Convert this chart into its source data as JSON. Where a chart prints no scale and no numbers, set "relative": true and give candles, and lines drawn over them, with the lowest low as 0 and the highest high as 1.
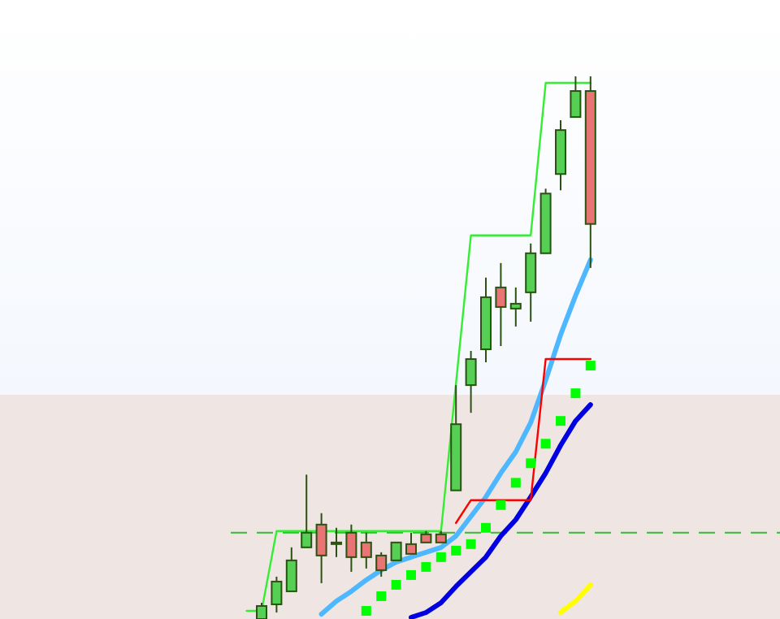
{
  "chart_data": {
    "type": "candlestick",
    "relative": true,
    "categories": [
      null,
      null,
      null,
      null,
      null,
      null,
      null,
      null,
      null,
      null,
      null,
      null,
      null,
      null,
      null,
      null,
      null,
      null,
      null,
      null,
      null,
      null,
      null,
      null
    ],
    "ohlc": [
      null,
      [
        0,
        0.03,
        0,
        0.024
      ],
      [
        0.027,
        0.078,
        0.012,
        0.069
      ],
      [
        0.051,
        0.132,
        0.051,
        0.108
      ],
      [
        0.132,
        0.266,
        0.132,
        0.159
      ],
      [
        0.174,
        0.195,
        0.066,
        0.117
      ],
      [
        0.141,
        0.168,
        0.114,
        0.141
      ],
      [
        0.159,
        0.174,
        0.087,
        0.114
      ],
      [
        0.141,
        0.159,
        0.093,
        0.114
      ],
      [
        0.117,
        0.123,
        0.078,
        0.09
      ],
      [
        0.108,
        0.141,
        0.108,
        0.141
      ],
      [
        0.138,
        0.159,
        0.12,
        0.12
      ],
      [
        0.156,
        0.162,
        0.141,
        0.141
      ],
      [
        0.156,
        0.162,
        0.141,
        0.141
      ],
      [
        0.237,
        0.431,
        0.237,
        0.359
      ],
      [
        0.431,
        0.494,
        0.38,
        0.479
      ],
      [
        0.497,
        0.629,
        0.473,
        0.593
      ],
      [
        0.611,
        0.656,
        0.503,
        0.575
      ],
      [
        0.572,
        0.611,
        0.539,
        0.581
      ],
      [
        0.602,
        0.692,
        0.548,
        0.674
      ],
      [
        0.674,
        0.793,
        0.674,
        0.784
      ],
      [
        0.82,
        0.919,
        0.79,
        0.901
      ],
      [
        0.925,
        1,
        0.925,
        0.973
      ],
      [
        0.973,
        1,
        0.647,
        0.728
      ]
    ],
    "colors": [
      null,
      "#55d055",
      "#55d055",
      "#55d055",
      "#55d055",
      "#e87474",
      "#55d055",
      "#e87474",
      "#e87474",
      "#e87474",
      "#55d055",
      "#e87474",
      "#e87474",
      "#e87474",
      "#55d055",
      "#55d055",
      "#55d055",
      "#e87474",
      "#55d055",
      "#55d055",
      "#55d055",
      "#55d055",
      "#55d055",
      "#e87474"
    ],
    "series": [
      {
        "type": "line",
        "marker": "none",
        "color": "#4db8ff",
        "values": [
          null,
          null,
          null,
          null,
          null,
          0.009,
          0.033,
          0.051,
          0.072,
          0.09,
          0.105,
          0.114,
          0.123,
          0.132,
          0.153,
          0.189,
          0.225,
          0.269,
          0.308,
          0.362,
          0.44,
          0.524,
          0.596,
          0.662
        ]
      },
      {
        "type": "line",
        "marker": "none",
        "color": "#0000e0",
        "values": [
          null,
          null,
          null,
          null,
          null,
          null,
          null,
          null,
          null,
          null,
          null,
          0.003,
          0.012,
          0.03,
          0.06,
          0.087,
          0.114,
          0.153,
          0.183,
          0.225,
          0.269,
          0.32,
          0.365,
          0.395
        ]
      },
      {
        "type": "line",
        "marker": "none",
        "color": "#ffff00",
        "values": [
          null,
          null,
          null,
          null,
          null,
          null,
          null,
          null,
          null,
          null,
          null,
          null,
          null,
          null,
          null,
          null,
          null,
          null,
          null,
          null,
          null,
          0.012,
          0.033,
          0.063
        ]
      },
      {
        "type": "line",
        "marker": "none",
        "color": "#33ee33",
        "values": [
          0.015,
          0.015,
          0.162,
          0.162,
          0.162,
          0.162,
          0.162,
          0.162,
          0.162,
          0.162,
          0.162,
          0.162,
          0.162,
          0.162,
          0.434,
          0.707,
          0.707,
          0.707,
          0.707,
          0.707,
          0.988,
          0.988,
          0.988,
          0.988
        ]
      },
      {
        "type": "line",
        "marker": "none",
        "color": "#ff0000",
        "values": [
          null,
          null,
          null,
          null,
          null,
          null,
          null,
          null,
          null,
          null,
          null,
          null,
          null,
          null,
          0.177,
          0.219,
          0.219,
          0.219,
          0.219,
          0.219,
          0.479,
          0.479,
          0.479,
          0.479
        ]
      },
      {
        "type": "scatter",
        "marker": "square",
        "color": "#00ff00",
        "values": [
          null,
          null,
          null,
          null,
          null,
          null,
          null,
          null,
          0.015,
          0.042,
          0.063,
          0.081,
          0.096,
          0.114,
          0.126,
          0.138,
          0.168,
          0.21,
          0.251,
          0.287,
          0.323,
          0.365,
          0.416,
          0.467
        ]
      }
    ],
    "line_style": "solid",
    "ref_lines": [
      {
        "axis": "y",
        "value": 0.159,
        "color": "#33bb33",
        "line_style": "dashed"
      }
    ],
    "bands": [
      {
        "axis": "y",
        "from": 0,
        "to": 0.413,
        "color": "#efe6e3"
      }
    ]
  }
}
